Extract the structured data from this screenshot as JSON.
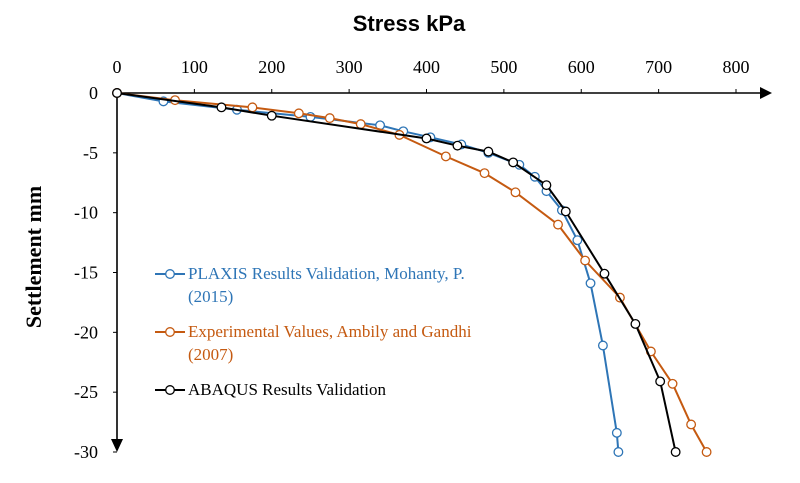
{
  "chart_data": {
    "type": "line",
    "title": "Stress kPa",
    "xlabel": "Stress kPa",
    "ylabel": "Settlement  mm",
    "xlim": [
      0,
      800
    ],
    "ylim": [
      -30,
      0
    ],
    "xticks": [
      "0",
      "100",
      "200",
      "300",
      "400",
      "500",
      "600",
      "700",
      "800"
    ],
    "yticks": [
      "0",
      "-5",
      "-10",
      "-15",
      "-20",
      "-25",
      "-30"
    ],
    "x_axis_position": "top",
    "grid": false,
    "legend": {
      "placement": "left"
    },
    "series": [
      {
        "name": "PLAXIS Results Validation, Mohanty, P. (2015)",
        "legend_lines": [
          "PLAXIS Results Validation, Mohanty, P.",
          "(2015)"
        ],
        "color": "#2E75B6",
        "marker": "open-circle",
        "x": [
          0,
          60,
          155,
          250,
          340,
          370,
          405,
          445,
          480,
          520,
          540,
          555,
          575,
          595,
          612,
          628,
          646,
          648
        ],
        "y": [
          0,
          -0.7,
          -1.4,
          -2.0,
          -2.7,
          -3.2,
          -3.7,
          -4.3,
          -5.0,
          -6.0,
          -7.0,
          -8.2,
          -9.8,
          -12.3,
          -15.9,
          -21.1,
          -28.4,
          -30.0
        ]
      },
      {
        "name": "Experimental Values, Ambily and Gandhi (2007)",
        "legend_lines": [
          "Experimental Values, Ambily and Gandhi",
          "(2007)"
        ],
        "color": "#C55A11",
        "marker": "open-circle",
        "x": [
          0,
          75,
          175,
          235,
          275,
          315,
          365,
          425,
          475,
          515,
          570,
          605,
          650,
          690,
          718,
          742,
          762
        ],
        "y": [
          0,
          -0.6,
          -1.2,
          -1.7,
          -2.1,
          -2.6,
          -3.5,
          -5.3,
          -6.7,
          -8.3,
          -11.0,
          -14.0,
          -17.1,
          -21.6,
          -24.3,
          -27.7,
          -30.0
        ]
      },
      {
        "name": "ABAQUS Results Validation",
        "legend_lines": [
          "ABAQUS Results Validation"
        ],
        "color": "#000000",
        "marker": "open-circle",
        "x": [
          0,
          135,
          200,
          400,
          440,
          480,
          512,
          555,
          580,
          630,
          670,
          702,
          722
        ],
        "y": [
          0,
          -1.2,
          -1.9,
          -3.8,
          -4.4,
          -4.9,
          -5.8,
          -7.7,
          -9.9,
          -15.1,
          -19.3,
          -24.1,
          -30.0
        ]
      }
    ]
  }
}
